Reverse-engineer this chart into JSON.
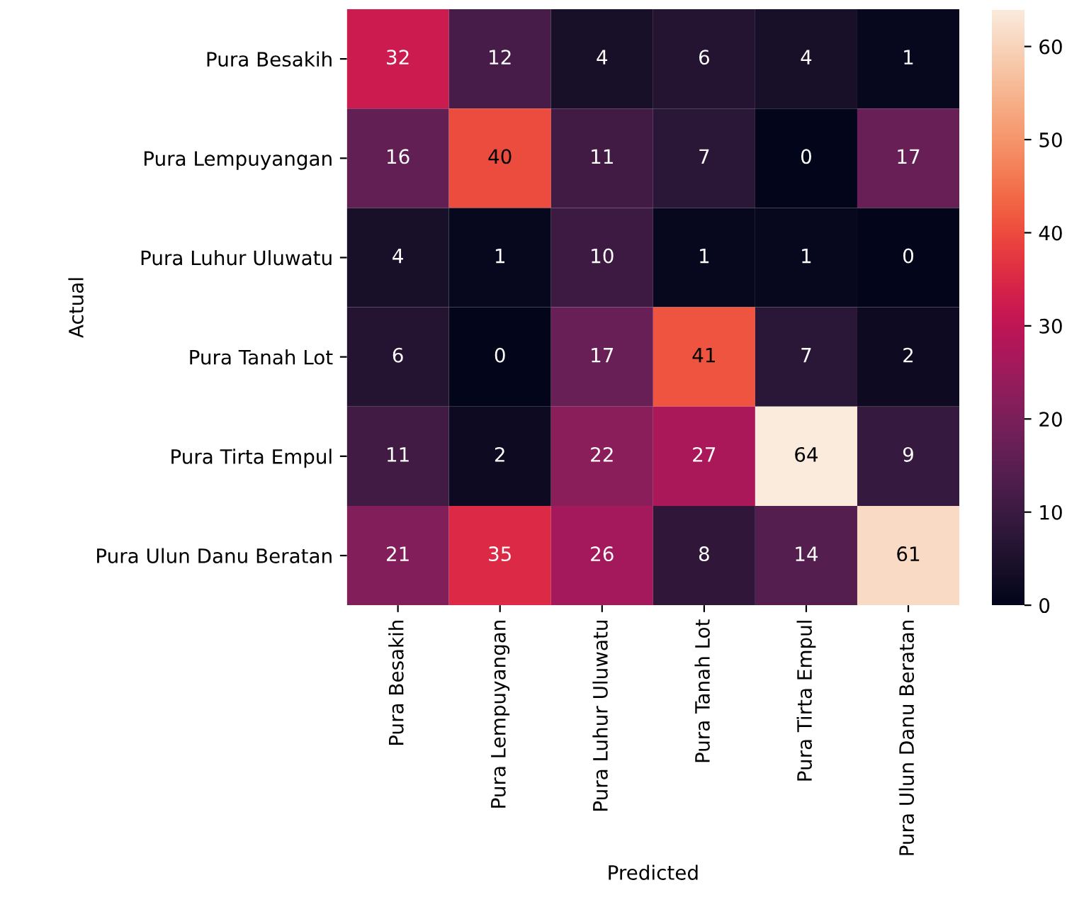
{
  "chart_data": {
    "type": "heatmap",
    "xlabel": "Predicted",
    "ylabel": "Actual",
    "categories": [
      "Pura Besakih",
      "Pura Lempuyangan",
      "Pura Luhur Uluwatu",
      "Pura Tanah Lot",
      "Pura Tirta Empul",
      "Pura Ulun Danu Beratan"
    ],
    "y_categories": [
      "Pura Besakih",
      "Pura Lempuyangan",
      "Pura Luhur Uluwatu",
      "Pura Tanah Lot",
      "Pura Tirta Empul",
      "Pura Ulun Danu Beratan"
    ],
    "cells": [
      [
        32,
        12,
        4,
        6,
        4,
        1
      ],
      [
        16,
        40,
        11,
        7,
        0,
        17
      ],
      [
        4,
        1,
        10,
        1,
        1,
        0
      ],
      [
        6,
        0,
        17,
        41,
        7,
        2
      ],
      [
        11,
        2,
        22,
        27,
        64,
        9
      ],
      [
        21,
        35,
        26,
        8,
        14,
        61
      ]
    ],
    "data_labels": true,
    "clim": [
      0,
      64
    ],
    "cticks": [
      0,
      10,
      20,
      30,
      40,
      50,
      60
    ]
  }
}
